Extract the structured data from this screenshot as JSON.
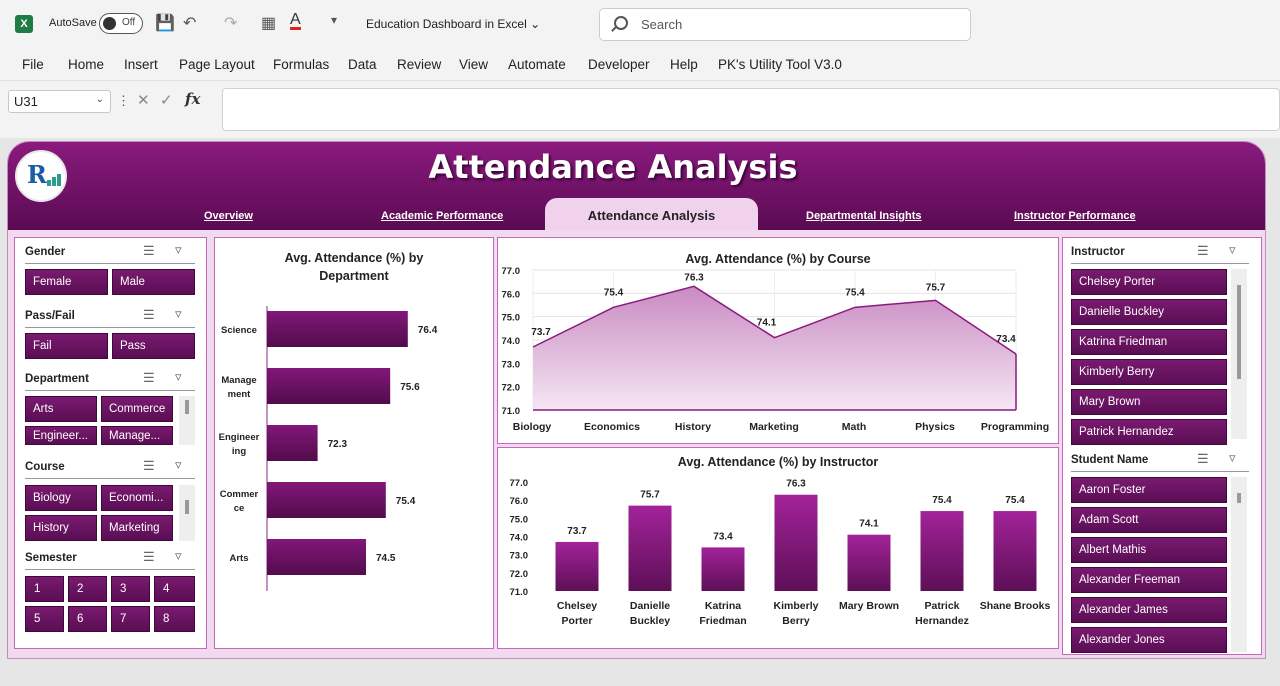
{
  "titlebar": {
    "autosave_label": "AutoSave",
    "toggle_state": "Off",
    "doc_title": "Education Dashboard in Excel",
    "search_placeholder": "Search"
  },
  "menu": [
    "File",
    "Home",
    "Insert",
    "Page Layout",
    "Formulas",
    "Data",
    "Review",
    "View",
    "Automate",
    "Developer",
    "Help",
    "PK's Utility Tool V3.0"
  ],
  "formula_bar": {
    "cell": "U31",
    "fx": "fx",
    "value": ""
  },
  "dashboard": {
    "title": "Attendance Analysis",
    "tabs": [
      "Overview",
      "Academic Performance",
      "Attendance Analysis",
      "Departmental Insights",
      "Instructor Performance"
    ],
    "active_tab": "Attendance Analysis"
  },
  "slicers_left": {
    "gender": {
      "title": "Gender",
      "items": [
        "Female",
        "Male"
      ]
    },
    "passfail": {
      "title": "Pass/Fail",
      "items": [
        "Fail",
        "Pass"
      ]
    },
    "department": {
      "title": "Department",
      "items": [
        "Arts",
        "Commerce",
        "Engineer...",
        "Manage..."
      ]
    },
    "course": {
      "title": "Course",
      "items": [
        "Biology",
        "Economi...",
        "History",
        "Marketing"
      ]
    },
    "semester": {
      "title": "Semester",
      "items": [
        "1",
        "2",
        "3",
        "4",
        "5",
        "6",
        "7",
        "8"
      ]
    }
  },
  "slicers_right": {
    "instructor": {
      "title": "Instructor",
      "items": [
        "Chelsey Porter",
        "Danielle Buckley",
        "Katrina Friedman",
        "Kimberly Berry",
        "Mary Brown",
        "Patrick Hernandez"
      ]
    },
    "student": {
      "title": "Student Name",
      "items": [
        "Aaron Foster",
        "Adam Scott",
        "Albert Mathis",
        "Alexander Freeman",
        "Alexander James",
        "Alexander Jones"
      ]
    }
  },
  "colors": {
    "primary": "#6e1665",
    "accent": "#a3239a",
    "area": "#d9a7d4"
  },
  "chart_data": [
    {
      "type": "bar",
      "orientation": "horizontal",
      "title": "Avg. Attendance (%) by Department",
      "categories": [
        "Science",
        "Management",
        "Engineering",
        "Commerce",
        "Arts"
      ],
      "category_labels": [
        [
          "Science"
        ],
        [
          "Manage",
          "ment"
        ],
        [
          "Engineer",
          "ing"
        ],
        [
          "Commer",
          "ce"
        ],
        [
          "Arts"
        ]
      ],
      "values": [
        76.4,
        75.6,
        72.3,
        75.4,
        74.5
      ],
      "data_labels": [
        "76.4",
        "75.6",
        "72.3",
        "75.4",
        "74.5"
      ],
      "xlim": [
        70,
        78
      ]
    },
    {
      "type": "area",
      "title": "Avg. Attendance (%) by Course",
      "categories": [
        "Biology",
        "Economics",
        "History",
        "Marketing",
        "Math",
        "Physics",
        "Programming"
      ],
      "values": [
        73.7,
        75.4,
        76.3,
        74.1,
        75.4,
        75.7,
        73.4
      ],
      "data_labels": [
        "73.7",
        "75.4",
        "76.3",
        "74.1",
        "75.4",
        "75.7",
        "73.4"
      ],
      "y_ticks": [
        "77.0",
        "76.0",
        "75.0",
        "74.0",
        "73.0",
        "72.0",
        "71.0"
      ],
      "ylim": [
        71,
        77
      ],
      "grid": true
    },
    {
      "type": "bar",
      "title": "Avg. Attendance (%) by Instructor",
      "categories": [
        "Chelsey Porter",
        "Danielle Buckley",
        "Katrina Friedman",
        "Kimberly Berry",
        "Mary Brown",
        "Patrick Hernandez",
        "Shane Brooks"
      ],
      "category_labels": [
        [
          "Chelsey",
          "Porter"
        ],
        [
          "Danielle",
          "Buckley"
        ],
        [
          "Katrina",
          "Friedman"
        ],
        [
          "Kimberly",
          "Berry"
        ],
        [
          "Mary Brown"
        ],
        [
          "Patrick",
          "Hernandez"
        ],
        [
          "Shane Brooks"
        ]
      ],
      "values": [
        73.7,
        75.7,
        73.4,
        76.3,
        74.1,
        75.4,
        75.4
      ],
      "data_labels": [
        "73.7",
        "75.7",
        "73.4",
        "76.3",
        "74.1",
        "75.4",
        "75.4"
      ],
      "y_ticks": [
        "77.0",
        "76.0",
        "75.0",
        "74.0",
        "73.0",
        "72.0",
        "71.0"
      ],
      "ylim": [
        71,
        77
      ]
    }
  ]
}
